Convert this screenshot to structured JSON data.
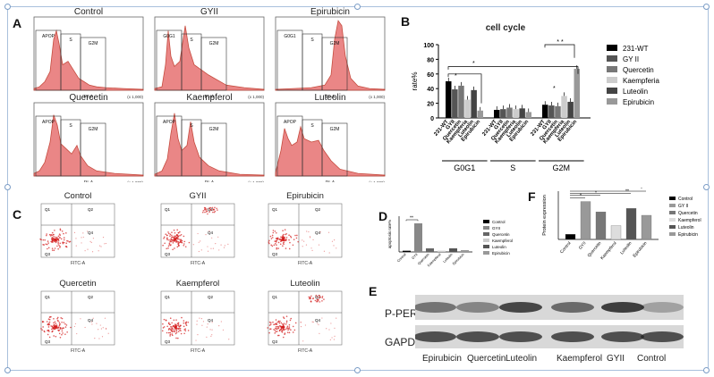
{
  "panel_labels": {
    "a": "A",
    "b": "B",
    "c": "C",
    "d": "D",
    "e": "E",
    "f": "F"
  },
  "histograms": [
    {
      "title": "Control",
      "gates": [
        "APOP",
        "S",
        "G2M"
      ]
    },
    {
      "title": "GYII",
      "gates": [
        "G0G1",
        "S",
        "G2M"
      ]
    },
    {
      "title": "Epirubicin",
      "gates": [
        "G0G1",
        "S",
        "G2M"
      ]
    },
    {
      "title": "Quercetin",
      "gates": [
        "APOP",
        "S",
        "G2M"
      ]
    },
    {
      "title": "Kaempferol",
      "gates": [
        "APOP",
        "S",
        "G2M"
      ]
    },
    {
      "title": "Luteolin",
      "gates": [
        "APOP",
        "S",
        "G2M"
      ]
    }
  ],
  "hist_axis": {
    "xlabel": "PI-A",
    "scale_note": "(x 1,000)"
  },
  "scatter_plots": [
    {
      "title": "Control"
    },
    {
      "title": "GYII"
    },
    {
      "title": "Epirubicin"
    },
    {
      "title": "Quercetin"
    },
    {
      "title": "Kaempferol"
    },
    {
      "title": "Luteolin"
    }
  ],
  "scatter_axis": {
    "xlabel": "FITC-A",
    "quadrants": [
      "Q1",
      "Q2",
      "Q3",
      "Q4"
    ]
  },
  "chart_data": [
    {
      "id": "B",
      "type": "bar",
      "title": "cell cycle",
      "ylabel": "rate%",
      "ylim": [
        0,
        100
      ],
      "yticks": [
        0,
        20,
        40,
        60,
        80,
        100
      ],
      "groups": [
        "G0G1",
        "S",
        "G2M"
      ],
      "tick_labels": [
        "231-WT",
        "GYII",
        "Quercetin",
        "Kaempferia",
        "Luteolin",
        "Epirubicin"
      ],
      "series": [
        {
          "name": "231-WT",
          "color": "#000000",
          "values": [
            50,
            11,
            18
          ]
        },
        {
          "name": "GY II",
          "color": "#555555",
          "values": [
            39,
            12,
            17
          ]
        },
        {
          "name": "Quercetin",
          "color": "#777777",
          "values": [
            44,
            14,
            16
          ]
        },
        {
          "name": "Kaempferia",
          "color": "#cccccc",
          "values": [
            25,
            12,
            30
          ]
        },
        {
          "name": "Luteolin",
          "color": "#444444",
          "values": [
            38,
            13,
            22
          ]
        },
        {
          "name": "Epirubicin",
          "color": "#999999",
          "values": [
            10,
            8,
            67
          ]
        }
      ],
      "significance": [
        "*",
        "*",
        "* *",
        "*"
      ]
    },
    {
      "id": "D",
      "type": "bar",
      "ylabel": "apoptosis rate%",
      "categories": [
        "Control",
        "GYII",
        "Quercetin",
        "Kaempferol",
        "Luteolin",
        "Epirubicin"
      ],
      "colors": [
        "#000000",
        "#888888",
        "#666666",
        "#cccccc",
        "#555555",
        "#999999"
      ],
      "values": [
        2,
        48,
        6,
        2,
        6,
        3
      ],
      "ylim": [
        0,
        60
      ],
      "significance": [
        "**"
      ]
    },
    {
      "id": "F",
      "type": "bar",
      "ylabel": "Protein expression",
      "categories": [
        "Control",
        "GYII",
        "Quercetin",
        "Kaempferol",
        "Luteolin",
        "Epirubicin"
      ],
      "legend": [
        "Control",
        "GY II",
        "Quercetin",
        "Kaempferol",
        "Luteolin",
        "Epirubicin"
      ],
      "colors": [
        "#000000",
        "#999999",
        "#777777",
        "#dddddd",
        "#555555",
        "#999999"
      ],
      "values": [
        0.15,
        1.1,
        0.8,
        0.4,
        0.9,
        0.7
      ],
      "ylim": [
        0,
        1.4
      ],
      "significance": [
        "*",
        "*",
        "**",
        "*"
      ]
    }
  ],
  "blot": {
    "rows": [
      "P-PERK",
      "GAPDH"
    ],
    "lanes": [
      "Epirubicin",
      "Quercetin",
      "Luteolin",
      "Kaempferol",
      "GYII",
      "Control"
    ]
  }
}
